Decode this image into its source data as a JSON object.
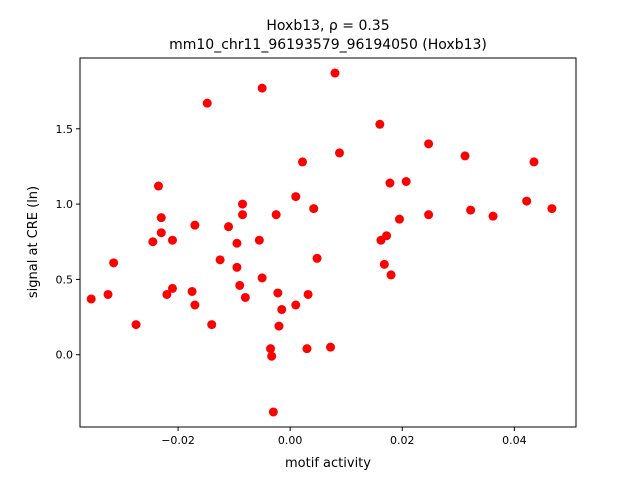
{
  "chart_data": {
    "type": "scatter",
    "title_line1": "Hoxb13, ρ = 0.35",
    "title_line2": "mm10_chr11_96193579_96194050 (Hoxb13)",
    "xlabel": "motif activity",
    "ylabel": "signal at CRE (ln)",
    "xlim": [
      -0.0375,
      0.051
    ],
    "ylim": [
      -0.48,
      1.97
    ],
    "xticks": [
      -0.02,
      0.0,
      0.02,
      0.04
    ],
    "xtick_labels": [
      "−0.02",
      "0.00",
      "0.02",
      "0.04"
    ],
    "yticks": [
      0.0,
      0.5,
      1.0,
      1.5
    ],
    "ytick_labels": [
      "0.0",
      "0.5",
      "1.0",
      "1.5"
    ],
    "grid": false,
    "point_color": "#ff0000",
    "points": [
      {
        "x": -0.0355,
        "y": 0.37
      },
      {
        "x": -0.0325,
        "y": 0.4
      },
      {
        "x": -0.0315,
        "y": 0.61
      },
      {
        "x": -0.0275,
        "y": 0.2
      },
      {
        "x": -0.0245,
        "y": 0.75
      },
      {
        "x": -0.0235,
        "y": 1.12
      },
      {
        "x": -0.023,
        "y": 0.91
      },
      {
        "x": -0.023,
        "y": 0.81
      },
      {
        "x": -0.022,
        "y": 0.4
      },
      {
        "x": -0.021,
        "y": 0.76
      },
      {
        "x": -0.021,
        "y": 0.44
      },
      {
        "x": -0.0175,
        "y": 0.42
      },
      {
        "x": -0.017,
        "y": 0.86
      },
      {
        "x": -0.017,
        "y": 0.33
      },
      {
        "x": -0.0148,
        "y": 1.67
      },
      {
        "x": -0.014,
        "y": 0.2
      },
      {
        "x": -0.0125,
        "y": 0.63
      },
      {
        "x": -0.011,
        "y": 0.85
      },
      {
        "x": -0.0095,
        "y": 0.74
      },
      {
        "x": -0.0095,
        "y": 0.58
      },
      {
        "x": -0.009,
        "y": 0.46
      },
      {
        "x": -0.0085,
        "y": 1.0
      },
      {
        "x": -0.0085,
        "y": 0.93
      },
      {
        "x": -0.008,
        "y": 0.38
      },
      {
        "x": -0.0055,
        "y": 0.76
      },
      {
        "x": -0.005,
        "y": 1.77
      },
      {
        "x": -0.005,
        "y": 0.51
      },
      {
        "x": -0.0035,
        "y": 0.04
      },
      {
        "x": -0.0033,
        "y": -0.01
      },
      {
        "x": -0.003,
        "y": -0.38
      },
      {
        "x": -0.0025,
        "y": 0.93
      },
      {
        "x": -0.0022,
        "y": 0.41
      },
      {
        "x": -0.002,
        "y": 0.19
      },
      {
        "x": -0.0015,
        "y": 0.3
      },
      {
        "x": 0.001,
        "y": 1.05
      },
      {
        "x": 0.001,
        "y": 0.33
      },
      {
        "x": 0.0022,
        "y": 1.28
      },
      {
        "x": 0.003,
        "y": 0.04
      },
      {
        "x": 0.0032,
        "y": 0.4
      },
      {
        "x": 0.0042,
        "y": 0.97
      },
      {
        "x": 0.0048,
        "y": 0.64
      },
      {
        "x": 0.0072,
        "y": 0.05
      },
      {
        "x": 0.008,
        "y": 1.87
      },
      {
        "x": 0.0088,
        "y": 1.34
      },
      {
        "x": 0.016,
        "y": 1.53
      },
      {
        "x": 0.0162,
        "y": 0.76
      },
      {
        "x": 0.0168,
        "y": 0.6
      },
      {
        "x": 0.0172,
        "y": 0.79
      },
      {
        "x": 0.0178,
        "y": 1.14
      },
      {
        "x": 0.018,
        "y": 0.53
      },
      {
        "x": 0.0195,
        "y": 0.9
      },
      {
        "x": 0.0207,
        "y": 1.15
      },
      {
        "x": 0.0247,
        "y": 1.4
      },
      {
        "x": 0.0247,
        "y": 0.93
      },
      {
        "x": 0.0312,
        "y": 1.32
      },
      {
        "x": 0.0322,
        "y": 0.96
      },
      {
        "x": 0.0362,
        "y": 0.92
      },
      {
        "x": 0.0422,
        "y": 1.02
      },
      {
        "x": 0.0435,
        "y": 1.28
      },
      {
        "x": 0.0467,
        "y": 0.97
      }
    ]
  }
}
